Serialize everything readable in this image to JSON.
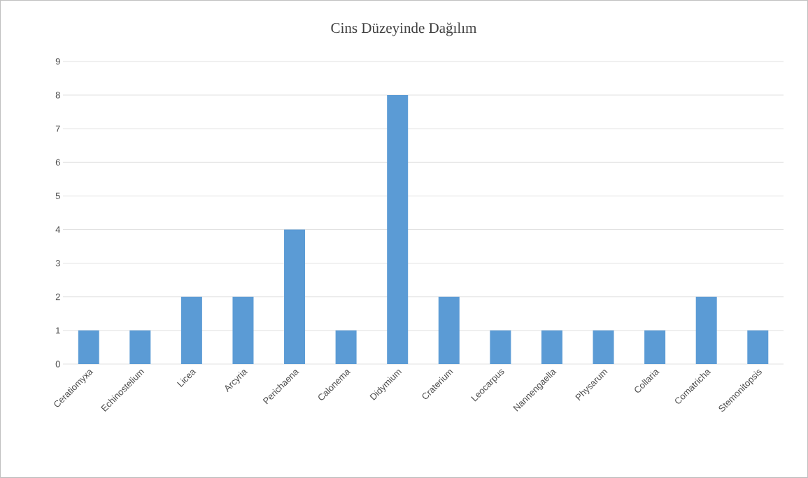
{
  "chart_data": {
    "type": "bar",
    "title": "Cins Düzeyinde Dağılım",
    "categories": [
      "Ceratiomyxa",
      "Echinostelium",
      "Licea",
      "Arcyria",
      "Perichaena",
      "Calonema",
      "Didymium",
      "Craterium",
      "Leocarpus",
      "Nannengaella",
      "Physarum",
      "Collaria",
      "Comatricha",
      "Stemonitopsis"
    ],
    "values": [
      1,
      1,
      2,
      2,
      4,
      1,
      8,
      2,
      1,
      1,
      1,
      1,
      2,
      1
    ],
    "color": "#5b9bd5",
    "ylim": [
      0,
      9
    ],
    "yticks": [
      0,
      1,
      2,
      3,
      4,
      5,
      6,
      7,
      8,
      9
    ],
    "grid": "y"
  }
}
